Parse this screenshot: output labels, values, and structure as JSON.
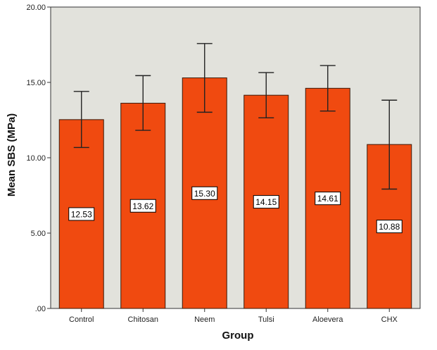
{
  "chart_data": {
    "type": "bar",
    "xlabel": "Group",
    "ylabel": "Mean SBS (MPa)",
    "categories": [
      "Control",
      "Chitosan",
      "Neem",
      "Tulsi",
      "Aloevera",
      "CHX"
    ],
    "values": [
      12.53,
      13.62,
      15.3,
      14.15,
      14.61,
      10.88
    ],
    "data_labels": [
      "12.53",
      "13.62",
      "15.30",
      "14.15",
      "14.61",
      "10.88"
    ],
    "error_bars": {
      "upper": [
        14.4,
        15.45,
        17.58,
        15.65,
        16.12,
        13.82
      ],
      "lower": [
        10.68,
        11.82,
        13.02,
        12.65,
        13.1,
        7.92
      ]
    },
    "ylim": [
      0,
      20
    ],
    "yticks": [
      0,
      5,
      10,
      15,
      20
    ],
    "ytick_labels": [
      ".00",
      "5.00",
      "10.00",
      "15.00",
      "20.00"
    ],
    "grid": false,
    "colors": {
      "bar": "#f04a10",
      "bar_edge": "#3a1a0a",
      "plot_background": "#e2e2dc",
      "error_bar": "#222222",
      "frame": "#333333"
    }
  }
}
